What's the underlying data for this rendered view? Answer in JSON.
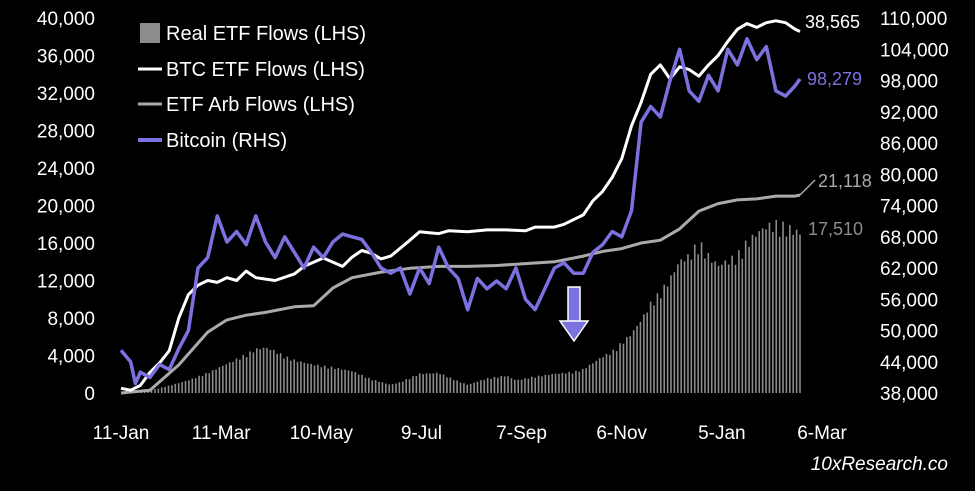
{
  "chart_data": {
    "type": "line",
    "watermark": "10xResearch.co",
    "legend_position": "top-left",
    "grid": false,
    "x_categories": [
      "11-Jan",
      "11-Mar",
      "10-May",
      "9-Jul",
      "7-Sep",
      "6-Nov",
      "5-Jan",
      "6-Mar"
    ],
    "y_left": {
      "range": [
        0,
        40000
      ],
      "ticks": [
        "0",
        "4,000",
        "8,000",
        "12,000",
        "16,000",
        "20,000",
        "24,000",
        "28,000",
        "32,000",
        "36,000",
        "40,000"
      ]
    },
    "y_right": {
      "range": [
        38000,
        110000
      ],
      "ticks": [
        "38,000",
        "44,000",
        "50,000",
        "56,000",
        "62,000",
        "68,000",
        "74,000",
        "80,000",
        "86,000",
        "92,000",
        "98,000",
        "104,000",
        "110,000"
      ]
    },
    "series": [
      {
        "name": "Real ETF Flows (LHS)",
        "axis": "left",
        "style": "bars",
        "color": "#8c8c8c",
        "end_label": "17,510",
        "points": [
          [
            0,
            0
          ],
          [
            6,
            300
          ],
          [
            10,
            800
          ],
          [
            14,
            1400
          ],
          [
            18,
            2200
          ],
          [
            22,
            3200
          ],
          [
            26,
            4200
          ],
          [
            28,
            4800
          ],
          [
            30,
            5000
          ],
          [
            32,
            4600
          ],
          [
            34,
            4000
          ],
          [
            36,
            3600
          ],
          [
            40,
            3100
          ],
          [
            44,
            2800
          ],
          [
            48,
            2400
          ],
          [
            52,
            1500
          ],
          [
            56,
            900
          ],
          [
            58,
            1200
          ],
          [
            62,
            2100
          ],
          [
            66,
            2200
          ],
          [
            70,
            1300
          ],
          [
            72,
            900
          ],
          [
            76,
            1600
          ],
          [
            80,
            1900
          ],
          [
            82,
            1400
          ],
          [
            86,
            1800
          ],
          [
            90,
            2100
          ],
          [
            94,
            2300
          ],
          [
            96,
            2600
          ],
          [
            98,
            3300
          ],
          [
            100,
            4000
          ],
          [
            102,
            4500
          ],
          [
            104,
            5500
          ],
          [
            106,
            6500
          ],
          [
            108,
            8000
          ],
          [
            110,
            9800
          ],
          [
            112,
            11000
          ],
          [
            114,
            12500
          ],
          [
            116,
            14500
          ],
          [
            118,
            15000
          ],
          [
            120,
            16500
          ],
          [
            122,
            15000
          ],
          [
            124,
            14000
          ],
          [
            126,
            14500
          ],
          [
            128,
            15000
          ],
          [
            130,
            16500
          ],
          [
            132,
            17500
          ],
          [
            134,
            18300
          ],
          [
            136,
            18500
          ],
          [
            138,
            18200
          ],
          [
            140,
            17800
          ],
          [
            141,
            17510
          ]
        ]
      },
      {
        "name": "BTC ETF Flows (LHS)",
        "axis": "left",
        "style": "line",
        "color": "#ffffff",
        "end_label": "38,565",
        "points": [
          [
            0,
            500
          ],
          [
            2,
            300
          ],
          [
            4,
            800
          ],
          [
            6,
            2200
          ],
          [
            8,
            3200
          ],
          [
            10,
            4500
          ],
          [
            12,
            8000
          ],
          [
            14,
            10500
          ],
          [
            16,
            11500
          ],
          [
            18,
            12000
          ],
          [
            20,
            11800
          ],
          [
            22,
            12300
          ],
          [
            24,
            12000
          ],
          [
            26,
            13000
          ],
          [
            28,
            12300
          ],
          [
            32,
            12000
          ],
          [
            36,
            12700
          ],
          [
            38,
            13500
          ],
          [
            42,
            14400
          ],
          [
            46,
            13500
          ],
          [
            48,
            14500
          ],
          [
            50,
            15200
          ],
          [
            52,
            14900
          ],
          [
            54,
            14300
          ],
          [
            56,
            14600
          ],
          [
            60,
            16300
          ],
          [
            62,
            17200
          ],
          [
            64,
            17100
          ],
          [
            66,
            17000
          ],
          [
            68,
            17300
          ],
          [
            72,
            17200
          ],
          [
            76,
            17400
          ],
          [
            80,
            17400
          ],
          [
            84,
            17300
          ],
          [
            86,
            17700
          ],
          [
            90,
            17700
          ],
          [
            92,
            18000
          ],
          [
            96,
            19000
          ],
          [
            98,
            20500
          ],
          [
            100,
            21500
          ],
          [
            102,
            23000
          ],
          [
            104,
            25000
          ],
          [
            106,
            28500
          ],
          [
            108,
            31000
          ],
          [
            110,
            34000
          ],
          [
            112,
            35000
          ],
          [
            114,
            33500
          ],
          [
            116,
            34800
          ],
          [
            118,
            34500
          ],
          [
            120,
            33800
          ],
          [
            122,
            35000
          ],
          [
            124,
            36000
          ],
          [
            126,
            37500
          ],
          [
            128,
            38800
          ],
          [
            130,
            39400
          ],
          [
            132,
            39000
          ],
          [
            134,
            39500
          ],
          [
            136,
            39700
          ],
          [
            138,
            39500
          ],
          [
            140,
            38800
          ],
          [
            141,
            38565
          ]
        ]
      },
      {
        "name": "ETF Arb Flows (LHS)",
        "axis": "left",
        "style": "line",
        "color": "#aaaaaa",
        "end_label": "21,118",
        "points": [
          [
            0,
            0
          ],
          [
            6,
            300
          ],
          [
            12,
            3000
          ],
          [
            18,
            6500
          ],
          [
            22,
            7800
          ],
          [
            26,
            8300
          ],
          [
            30,
            8600
          ],
          [
            36,
            9200
          ],
          [
            40,
            9300
          ],
          [
            44,
            11200
          ],
          [
            48,
            12300
          ],
          [
            54,
            12900
          ],
          [
            60,
            13300
          ],
          [
            66,
            13500
          ],
          [
            72,
            13500
          ],
          [
            78,
            13600
          ],
          [
            84,
            13800
          ],
          [
            90,
            14000
          ],
          [
            96,
            14600
          ],
          [
            100,
            15100
          ],
          [
            104,
            15400
          ],
          [
            108,
            16000
          ],
          [
            112,
            16300
          ],
          [
            116,
            17500
          ],
          [
            120,
            19400
          ],
          [
            124,
            20200
          ],
          [
            128,
            20600
          ],
          [
            132,
            20700
          ],
          [
            136,
            21000
          ],
          [
            138,
            21000
          ],
          [
            140,
            21000
          ],
          [
            141,
            21118
          ]
        ]
      },
      {
        "name": "Bitcoin (RHS)",
        "axis": "right",
        "style": "line",
        "color": "#7b72e0",
        "end_label": "98,279",
        "points": [
          [
            0,
            46200
          ],
          [
            2,
            44000
          ],
          [
            3,
            39800
          ],
          [
            4,
            42000
          ],
          [
            6,
            41000
          ],
          [
            8,
            43500
          ],
          [
            10,
            42500
          ],
          [
            12,
            46500
          ],
          [
            14,
            50000
          ],
          [
            16,
            62000
          ],
          [
            18,
            64000
          ],
          [
            20,
            72000
          ],
          [
            22,
            67000
          ],
          [
            24,
            69000
          ],
          [
            26,
            66500
          ],
          [
            28,
            72000
          ],
          [
            30,
            67000
          ],
          [
            32,
            64000
          ],
          [
            34,
            68000
          ],
          [
            36,
            65000
          ],
          [
            38,
            62000
          ],
          [
            40,
            66000
          ],
          [
            42,
            64000
          ],
          [
            44,
            67000
          ],
          [
            46,
            68500
          ],
          [
            48,
            68000
          ],
          [
            50,
            67500
          ],
          [
            52,
            65000
          ],
          [
            54,
            62000
          ],
          [
            56,
            61000
          ],
          [
            58,
            62000
          ],
          [
            60,
            57000
          ],
          [
            62,
            62000
          ],
          [
            64,
            59000
          ],
          [
            66,
            66000
          ],
          [
            68,
            62000
          ],
          [
            70,
            60000
          ],
          [
            72,
            54000
          ],
          [
            74,
            60000
          ],
          [
            76,
            58000
          ],
          [
            78,
            59500
          ],
          [
            80,
            58000
          ],
          [
            82,
            62000
          ],
          [
            84,
            56000
          ],
          [
            86,
            54000
          ],
          [
            88,
            58000
          ],
          [
            90,
            62000
          ],
          [
            92,
            63000
          ],
          [
            94,
            61000
          ],
          [
            96,
            61000
          ],
          [
            98,
            65000
          ],
          [
            100,
            66500
          ],
          [
            102,
            69000
          ],
          [
            104,
            68000
          ],
          [
            106,
            73000
          ],
          [
            108,
            90000
          ],
          [
            110,
            93000
          ],
          [
            112,
            91000
          ],
          [
            114,
            98000
          ],
          [
            116,
            104000
          ],
          [
            118,
            96000
          ],
          [
            120,
            94000
          ],
          [
            122,
            99000
          ],
          [
            124,
            96000
          ],
          [
            126,
            104000
          ],
          [
            128,
            101000
          ],
          [
            130,
            106000
          ],
          [
            132,
            102000
          ],
          [
            134,
            104500
          ],
          [
            136,
            96000
          ],
          [
            138,
            95000
          ],
          [
            140,
            97000
          ],
          [
            141,
            98279
          ]
        ]
      }
    ]
  }
}
